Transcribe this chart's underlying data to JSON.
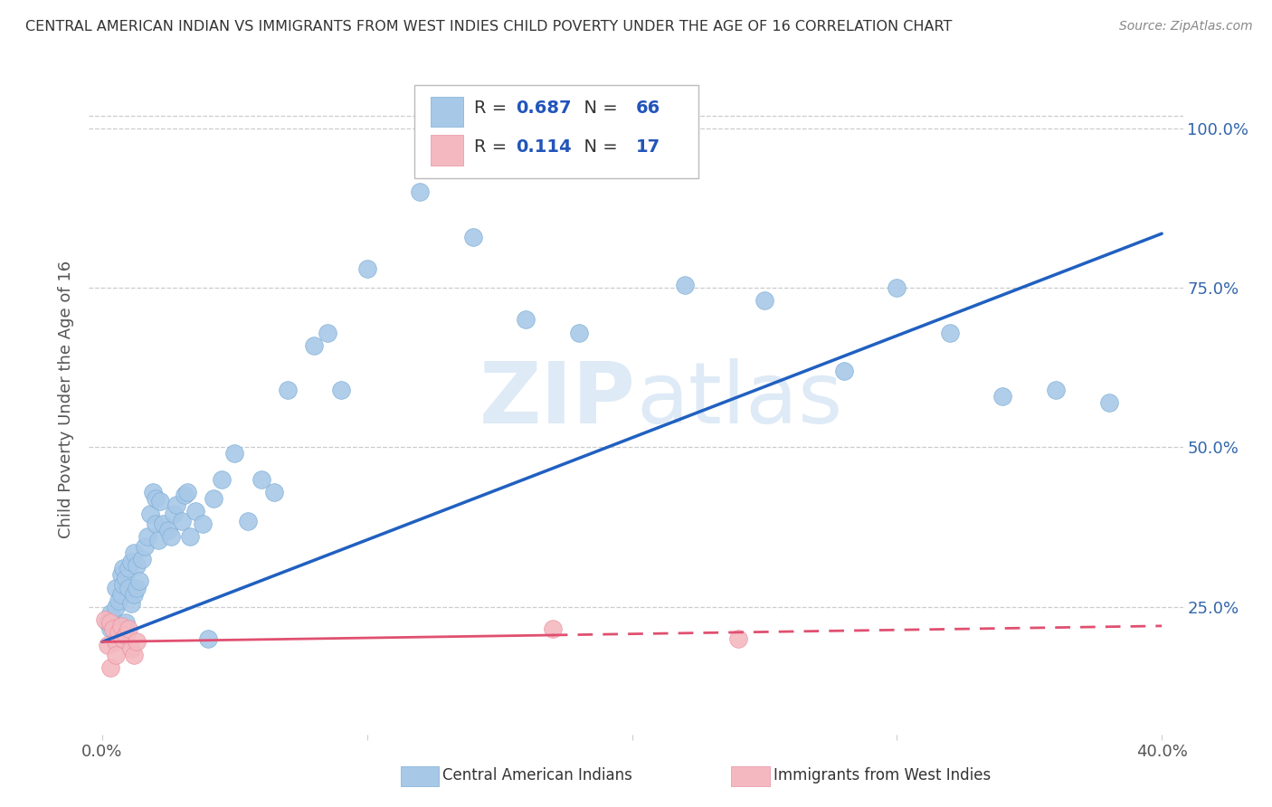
{
  "title": "CENTRAL AMERICAN INDIAN VS IMMIGRANTS FROM WEST INDIES CHILD POVERTY UNDER THE AGE OF 16 CORRELATION CHART",
  "source": "Source: ZipAtlas.com",
  "ylabel": "Child Poverty Under the Age of 16",
  "blue_R": "0.687",
  "blue_N": "66",
  "pink_R": "0.114",
  "pink_N": "17",
  "blue_color": "#a8c8e8",
  "blue_edge_color": "#7aadd4",
  "pink_color": "#f4b8c0",
  "pink_edge_color": "#e890a0",
  "blue_line_color": "#2060c0",
  "pink_line_color": "#e05070",
  "legend_label_blue": "Central American Indians",
  "legend_label_pink": "Immigrants from West Indies",
  "watermark": "ZIPatlas",
  "background_color": "#ffffff",
  "title_color": "#333333",
  "source_color": "#888888",
  "ylabel_color": "#555555",
  "tick_color": "#555555",
  "right_tick_color": "#3366aa",
  "grid_color": "#cccccc",
  "legend_text_color": "#333333",
  "legend_value_color": "#2255bb",
  "blue_x": [
    0.002,
    0.003,
    0.003,
    0.004,
    0.005,
    0.005,
    0.006,
    0.007,
    0.007,
    0.008,
    0.008,
    0.009,
    0.009,
    0.01,
    0.01,
    0.011,
    0.011,
    0.012,
    0.012,
    0.013,
    0.013,
    0.014,
    0.015,
    0.016,
    0.017,
    0.018,
    0.019,
    0.02,
    0.02,
    0.021,
    0.022,
    0.023,
    0.025,
    0.026,
    0.027,
    0.028,
    0.03,
    0.031,
    0.032,
    0.033,
    0.035,
    0.038,
    0.04,
    0.042,
    0.045,
    0.05,
    0.055,
    0.06,
    0.065,
    0.07,
    0.08,
    0.085,
    0.09,
    0.1,
    0.12,
    0.14,
    0.16,
    0.18,
    0.22,
    0.25,
    0.28,
    0.3,
    0.32,
    0.34,
    0.36,
    0.38
  ],
  "blue_y": [
    0.225,
    0.215,
    0.24,
    0.23,
    0.25,
    0.28,
    0.26,
    0.27,
    0.3,
    0.285,
    0.31,
    0.225,
    0.295,
    0.31,
    0.28,
    0.255,
    0.32,
    0.27,
    0.335,
    0.28,
    0.315,
    0.29,
    0.325,
    0.345,
    0.36,
    0.395,
    0.43,
    0.38,
    0.42,
    0.355,
    0.415,
    0.38,
    0.37,
    0.36,
    0.395,
    0.41,
    0.385,
    0.425,
    0.43,
    0.36,
    0.4,
    0.38,
    0.2,
    0.42,
    0.45,
    0.49,
    0.385,
    0.45,
    0.43,
    0.59,
    0.66,
    0.68,
    0.59,
    0.78,
    0.9,
    0.83,
    0.7,
    0.68,
    0.755,
    0.73,
    0.62,
    0.75,
    0.68,
    0.58,
    0.59,
    0.57
  ],
  "pink_x": [
    0.001,
    0.002,
    0.003,
    0.003,
    0.004,
    0.005,
    0.005,
    0.006,
    0.007,
    0.008,
    0.009,
    0.01,
    0.011,
    0.012,
    0.013,
    0.17,
    0.24
  ],
  "pink_y": [
    0.23,
    0.19,
    0.225,
    0.155,
    0.215,
    0.195,
    0.175,
    0.21,
    0.22,
    0.2,
    0.205,
    0.215,
    0.185,
    0.175,
    0.195,
    0.215,
    0.2
  ],
  "blue_line_x0": 0.0,
  "blue_line_y0": 0.195,
  "blue_line_x1": 0.4,
  "blue_line_y1": 0.835,
  "pink_line_x0": 0.0,
  "pink_line_y0": 0.195,
  "pink_line_x1": 0.4,
  "pink_line_y1": 0.22,
  "xlim": [
    -0.005,
    0.408
  ],
  "ylim": [
    0.05,
    1.1
  ],
  "yticks": [
    0.25,
    0.5,
    0.75,
    1.0
  ],
  "ytick_labels_right": [
    "25.0%",
    "50.0%",
    "75.0%",
    "100.0%"
  ],
  "xticks": [
    0.0,
    0.1,
    0.2,
    0.3,
    0.4
  ],
  "xtick_labels": [
    "0.0%",
    "",
    "",
    "",
    "40.0%"
  ]
}
